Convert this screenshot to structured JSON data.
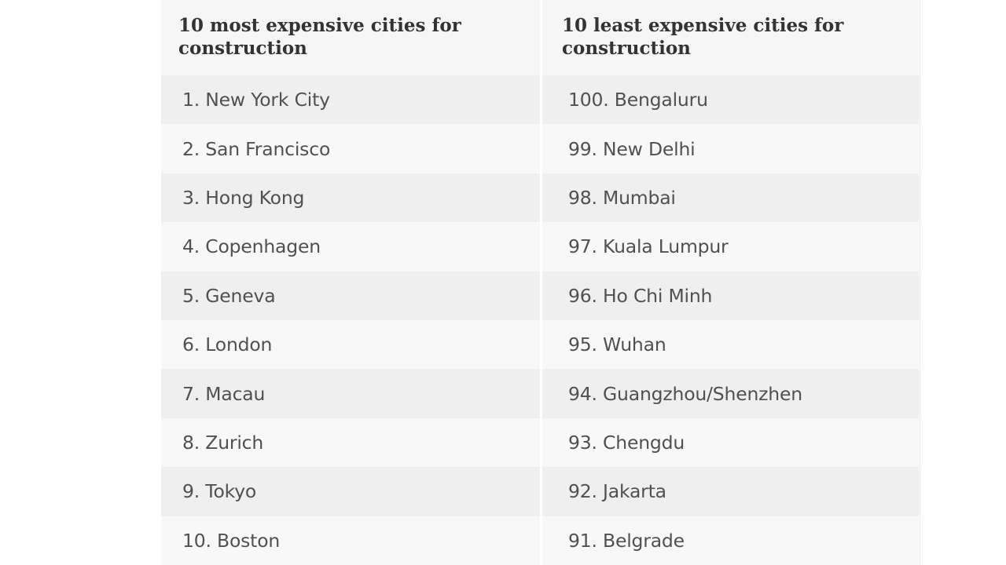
{
  "table": {
    "headers": {
      "most": "10 most expensive cities for construction",
      "least": "10 least expensive cities for construction"
    },
    "rows": [
      {
        "most": "1. New York City",
        "least": "100. Bengaluru"
      },
      {
        "most": "2. San Francisco",
        "least": "99. New Delhi"
      },
      {
        "most": "3. Hong Kong",
        "least": "98. Mumbai"
      },
      {
        "most": "4. Copenhagen",
        "least": "97. Kuala Lumpur"
      },
      {
        "most": "5. Geneva",
        "least": "96. Ho Chi Minh"
      },
      {
        "most": "6. London",
        "least": "95. Wuhan"
      },
      {
        "most": "7. Macau",
        "least": "94. Guangzhou/Shenzhen"
      },
      {
        "most": "8. Zurich",
        "least": "93. Chengdu"
      },
      {
        "most": "9. Tokyo",
        "least": "92. Jakarta"
      },
      {
        "most": "10. Boston",
        "least": "91. Belgrade"
      }
    ]
  }
}
